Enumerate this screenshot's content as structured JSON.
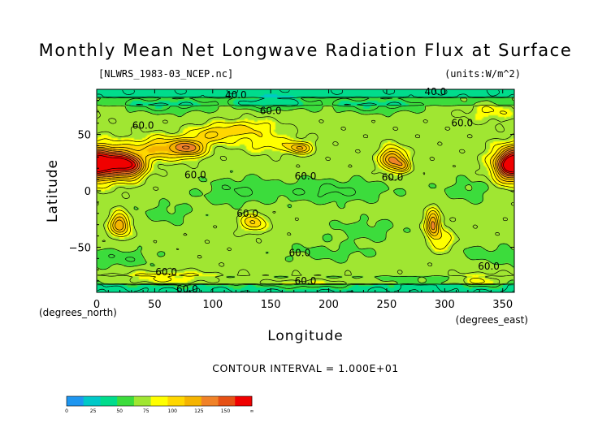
{
  "chart_data": {
    "type": "heatmap",
    "title": "Monthly Mean Net Longwave Radiation Flux at Surface",
    "file_label": "[NLWRS_1983-03_NCEP.nc]",
    "units_label": "(units:W/m^2)",
    "xlabel": "Longitude",
    "ylabel": "Latitude",
    "x_unit_label": "(degrees_east)",
    "y_unit_label": "(degrees_north)",
    "xlim": [
      0,
      360
    ],
    "ylim": [
      -90,
      90
    ],
    "x_ticks": [
      0,
      50,
      100,
      150,
      200,
      250,
      300,
      350
    ],
    "y_ticks": [
      -50,
      0,
      50
    ],
    "contour_interval_text": "CONTOUR INTERVAL = 1.000E+01",
    "contour_labels": [
      {
        "text": "40.0",
        "lon": 120,
        "lat": 85
      },
      {
        "text": "40.0",
        "lon": 292,
        "lat": 88
      },
      {
        "text": "60.0",
        "lon": 150,
        "lat": 71
      },
      {
        "text": "60.0",
        "lon": 40,
        "lat": 58
      },
      {
        "text": "60.0",
        "lon": 315,
        "lat": 60
      },
      {
        "text": "60.0",
        "lon": 85,
        "lat": 14
      },
      {
        "text": "60.0",
        "lon": 180,
        "lat": 13
      },
      {
        "text": "60.0",
        "lon": 255,
        "lat": 12
      },
      {
        "text": "60.0",
        "lon": 130,
        "lat": -20
      },
      {
        "text": "60.0",
        "lon": 175,
        "lat": -55
      },
      {
        "text": "60.0",
        "lon": 338,
        "lat": -67
      },
      {
        "text": "60.0",
        "lon": 60,
        "lat": -72
      },
      {
        "text": "60.0",
        "lon": 180,
        "lat": -80
      },
      {
        "text": "60.0",
        "lon": 78,
        "lat": -87
      }
    ],
    "colorbar": {
      "levels": [
        "0",
        "25",
        "50",
        "75",
        "100",
        "125",
        "150",
        "∞"
      ],
      "colors": [
        "#1e96f0",
        "#00c8c8",
        "#00dc8c",
        "#3cdc3c",
        "#a0e632",
        "#ffff00",
        "#ffd700",
        "#f5b400",
        "#f08228",
        "#e65014",
        "#f00000"
      ]
    }
  }
}
